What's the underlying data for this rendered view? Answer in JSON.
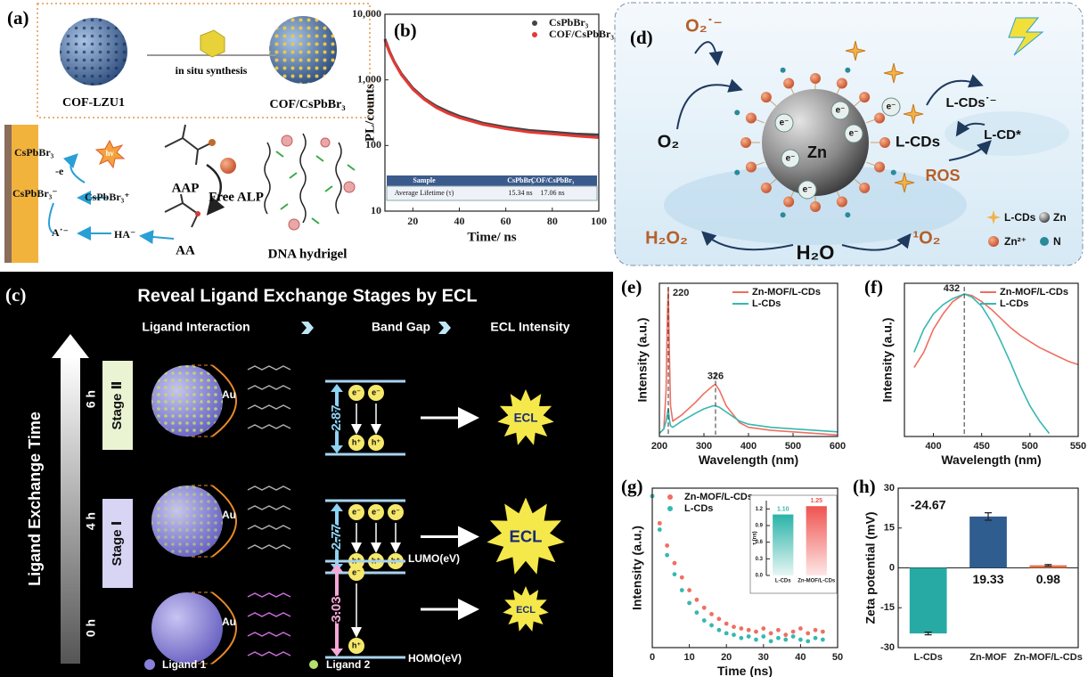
{
  "panel_labels": [
    "(a)",
    "(b)",
    "(c)",
    "(d)",
    "(e)",
    "(f)",
    "(g)",
    "(h)"
  ],
  "panel_a": {
    "top": [
      "COF-LZU1",
      "in situ synthesis",
      "COF/CsPbBr₃"
    ],
    "electrode": [
      "CsPbBr₃",
      "-e",
      "CsPbBr₃⁻",
      "CsPbBr₃⁺",
      "hν",
      "A˙⁻",
      "HA⁻"
    ],
    "reagents": [
      "AAP",
      "Free ALP",
      "AA",
      "DNA hydrigel"
    ]
  },
  "panel_c": {
    "title": "Reveal Ligand Exchange Stages by ECL",
    "headers": [
      "Ligand Interaction",
      "Band Gap",
      "ECL Intensity"
    ],
    "time_axis": "Ligand Exchange Time",
    "times": [
      "6 h",
      "4 h",
      "0 h"
    ],
    "stages": [
      "Stage Ⅱ",
      "Stage Ⅰ"
    ],
    "au": "Au",
    "gaps": [
      2.87,
      2.77,
      3.03
    ],
    "lumo": "LUMO(eV)",
    "homo": "HOMO(eV)",
    "electron": "e⁻",
    "hole": "h⁺",
    "ecl": "ECL",
    "legend": [
      "Ligand 1",
      "Ligand 2"
    ]
  },
  "panel_d": {
    "species": [
      "O₂˙⁻",
      "O₂",
      "e⁻",
      "Zn",
      "L-CDs",
      "L-CDs˙⁻",
      "L-CD*",
      "ROS",
      "H₂O₂",
      "¹O₂",
      "H₂O"
    ],
    "legend": [
      "L-CDs",
      "Zn",
      "Zn²⁺",
      "N"
    ]
  },
  "chart_data": [
    {
      "type": "line",
      "xlabel": "Time/ ns",
      "ylabel": "PL/counts",
      "log_y": true,
      "x": [
        8,
        10,
        12,
        15,
        20,
        25,
        30,
        35,
        40,
        50,
        60,
        70,
        80,
        90,
        100
      ],
      "series": [
        {
          "name": "CsPbBr₃",
          "color": "#444444",
          "values": [
            4200,
            2700,
            1900,
            1250,
            750,
            520,
            400,
            330,
            280,
            220,
            190,
            170,
            160,
            150,
            145
          ]
        },
        {
          "name": "COF/CsPbBr₃",
          "color": "#e53935",
          "values": [
            4000,
            2600,
            1850,
            1200,
            720,
            500,
            380,
            310,
            265,
            210,
            180,
            160,
            150,
            140,
            132
          ]
        }
      ],
      "xlim": [
        8,
        100
      ],
      "xticks": [
        20,
        40,
        60,
        80,
        100
      ],
      "ylim": [
        10,
        10000
      ],
      "yticks": [
        10,
        100,
        {
          "value": 1000,
          "label": "1,000"
        },
        {
          "value": 10000,
          "label": "10,000"
        }
      ],
      "legend": "upper right",
      "table": {
        "header": [
          "Sample",
          "CsPbBr₃",
          "COF/CsPbBr₃"
        ],
        "rows": [
          [
            "Average Lifetime (τ)",
            "15.34 ns",
            "17.06 ns"
          ]
        ]
      }
    },
    {
      "type": "line",
      "xlabel": "Wavelength (nm)",
      "ylabel": "Intensity (a.u.)",
      "x": [
        200,
        210,
        215,
        218,
        220,
        222,
        225,
        230,
        250,
        280,
        300,
        320,
        326,
        335,
        350,
        380,
        400,
        450,
        500,
        550,
        600
      ],
      "series": [
        {
          "name": "Zn-MOF/L-CDs",
          "color": "#ef6f61",
          "values": [
            0.02,
            0.05,
            0.3,
            0.8,
            0.97,
            0.6,
            0.2,
            0.1,
            0.14,
            0.22,
            0.28,
            0.33,
            0.34,
            0.3,
            0.2,
            0.09,
            0.06,
            0.04,
            0.03,
            0.02,
            0.01
          ]
        },
        {
          "name": "L-CDs",
          "color": "#36b8b0",
          "values": [
            0.02,
            0.05,
            0.1,
            0.15,
            0.18,
            0.12,
            0.07,
            0.06,
            0.1,
            0.15,
            0.18,
            0.2,
            0.2,
            0.19,
            0.16,
            0.1,
            0.08,
            0.06,
            0.05,
            0.04,
            0.03
          ]
        }
      ],
      "xlim": [
        200,
        600
      ],
      "xticks": [
        200,
        300,
        400,
        500,
        600
      ],
      "ylim": [
        0,
        1
      ],
      "legend": "upper right",
      "peaks": [
        220,
        326
      ]
    },
    {
      "type": "line",
      "xlabel": "Wavelength (nm)",
      "ylabel": "Intensity (a.u.)",
      "x": [
        380,
        390,
        400,
        410,
        420,
        432,
        440,
        450,
        460,
        470,
        480,
        490,
        500,
        510,
        520,
        530,
        540,
        550
      ],
      "series": [
        {
          "name": "Zn-MOF/L-CDs",
          "color": "#ef6f61",
          "values": [
            0.45,
            0.55,
            0.7,
            0.8,
            0.88,
            0.93,
            0.92,
            0.88,
            0.83,
            0.77,
            0.71,
            0.66,
            0.62,
            0.58,
            0.55,
            0.52,
            0.49,
            0.47
          ]
        },
        {
          "name": "L-CDs",
          "color": "#36b8b0",
          "values": [
            0.55,
            0.7,
            0.8,
            0.86,
            0.9,
            0.93,
            0.91,
            0.85,
            0.75,
            0.62,
            0.48,
            0.33,
            0.2,
            0.1,
            0.02,
            null,
            null,
            null
          ]
        }
      ],
      "xlim": [
        370,
        550
      ],
      "xticks": [
        400,
        450,
        500,
        550
      ],
      "ylim": [
        0,
        1
      ],
      "legend": "upper right",
      "peaks": [
        432
      ]
    },
    {
      "type": "scatter",
      "xlabel": "Time (ns)",
      "ylabel": "Intensity (a.u.)",
      "x": [
        0,
        2,
        4,
        6,
        8,
        10,
        12,
        14,
        16,
        18,
        20,
        22,
        24,
        26,
        28,
        30,
        32,
        34,
        36,
        38,
        40,
        42,
        44,
        46
      ],
      "series": [
        {
          "name": "Zn-MOF/L-CDs",
          "color": "#ef6f61",
          "values": [
            0.95,
            0.78,
            0.64,
            0.53,
            0.44,
            0.36,
            0.3,
            0.25,
            0.21,
            0.18,
            0.15,
            0.13,
            0.12,
            0.11,
            0.1,
            0.12,
            0.09,
            0.11,
            0.08,
            0.1,
            0.12,
            0.09,
            0.11,
            0.1
          ]
        },
        {
          "name": "L-CDs",
          "color": "#36b8b0",
          "values": [
            0.95,
            0.74,
            0.58,
            0.46,
            0.36,
            0.28,
            0.22,
            0.17,
            0.14,
            0.11,
            0.09,
            0.08,
            0.06,
            0.07,
            0.05,
            0.07,
            0.04,
            0.06,
            0.05,
            0.07,
            0.05,
            0.04,
            0.06,
            0.05
          ]
        }
      ],
      "xlim": [
        0,
        50
      ],
      "xticks": [
        0,
        10,
        20,
        30,
        40,
        50
      ],
      "ylim": [
        0,
        1
      ],
      "legend": "upper left"
    },
    {
      "type": "bar",
      "ylabel": "τ (ns)",
      "categories": [
        "L-CDs",
        "Zn-MOF/L-CDs"
      ],
      "values": [
        1.1,
        1.25
      ],
      "value_labels": [
        "1.10",
        "1.25"
      ],
      "colors": [
        "#36b8b0",
        "#ef5350"
      ],
      "ylim": [
        0,
        1.35
      ],
      "yticks": [
        {
          "value": 0,
          "label": "0.0"
        },
        0.3,
        0.6,
        0.9,
        1.2
      ]
    },
    {
      "type": "bar",
      "ylabel": "Zeta potential (mV)",
      "categories": [
        "L-CDs",
        "Zn-MOF",
        "Zn-MOF/L-CDs"
      ],
      "values": [
        -24.67,
        19.33,
        0.98
      ],
      "errors": [
        0.5,
        1.4,
        0.3
      ],
      "colors": [
        "#27aaa4",
        "#2f5d8f",
        "#e8734a"
      ],
      "ylim": [
        -30,
        30
      ],
      "yticks": [
        -30,
        -15,
        0,
        15,
        30
      ]
    }
  ]
}
